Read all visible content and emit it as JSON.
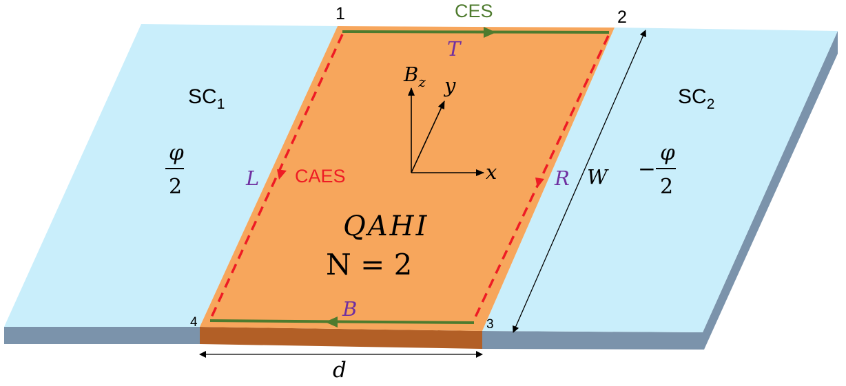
{
  "colors": {
    "superconductor": "#c9eefb",
    "superconductor_side": "#7b93ab",
    "qahi_top": "#f7a65c",
    "qahi_side": "#b25f26",
    "chiral_edge": "#4e7b2e",
    "caes": "#ee1b24",
    "edge_label": "#7030a0",
    "black": "#000000"
  },
  "corners": [
    "1",
    "2",
    "3",
    "4"
  ],
  "labels": {
    "ces": "CES",
    "caes": "CAES",
    "edge_top": "T",
    "edge_bottom": "B",
    "edge_left": "L",
    "edge_right": "R",
    "sc1_base": "SC",
    "sc1_sub": "1",
    "sc2_base": "SC",
    "sc2_sub": "2",
    "phase_left_num": "φ",
    "phase_left_den": "2",
    "phase_right_sign": "−",
    "phase_right_num": "φ",
    "phase_right_den": "2",
    "qahi_name": "QAHI",
    "qahi_chern": "N = 2",
    "width": "W",
    "length": "d",
    "axis_bz_base": "B",
    "axis_bz_sub": "z",
    "axis_y": "y",
    "axis_x": "x"
  }
}
